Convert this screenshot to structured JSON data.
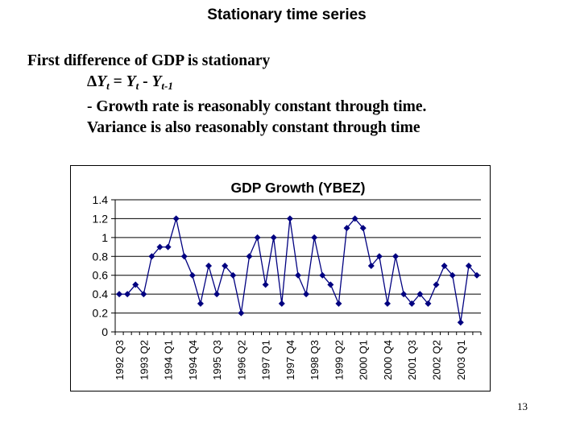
{
  "slide": {
    "title": "Stationary time series",
    "line1": "First difference of GDP is stationary",
    "formula": {
      "delta": "Δ",
      "lhs_var": "Y",
      "lhs_sub": "t",
      "equals": " = ",
      "rhs_var": "Y",
      "rhs_sub": "t",
      "minus": " - ",
      "lag_var": "Y",
      "lag_sub": "t-1"
    },
    "line3": "- Growth rate is reasonably constant through time.",
    "line4": "Variance is also reasonably constant through time",
    "page_number": "13"
  },
  "chart_data": {
    "type": "line",
    "title": "GDP Growth (YBEZ)",
    "xlabel": "",
    "ylabel": "",
    "ylim": [
      0,
      1.4
    ],
    "yticks": [
      "0",
      "0.2",
      "0.4",
      "0.6",
      "0.8",
      "1",
      "1.2",
      "1.4"
    ],
    "grid": true,
    "marker": "diamond",
    "color": "#000080",
    "x": [
      "1992 Q3",
      "1992 Q4",
      "1993 Q1",
      "1993 Q2",
      "1993 Q3",
      "1993 Q4",
      "1994 Q1",
      "1994 Q2",
      "1994 Q3",
      "1994 Q4",
      "1995 Q1",
      "1995 Q2",
      "1995 Q3",
      "1995 Q4",
      "1996 Q1",
      "1996 Q2",
      "1996 Q3",
      "1996 Q4",
      "1997 Q1",
      "1997 Q2",
      "1997 Q3",
      "1997 Q4",
      "1998 Q1",
      "1998 Q2",
      "1998 Q3",
      "1998 Q4",
      "1999 Q1",
      "1999 Q2",
      "1999 Q3",
      "1999 Q4",
      "2000 Q1",
      "2000 Q2",
      "2000 Q3",
      "2000 Q4",
      "2001 Q1",
      "2001 Q2",
      "2001 Q3",
      "2001 Q4",
      "2002 Q1",
      "2002 Q2",
      "2002 Q3",
      "2002 Q4",
      "2003 Q1",
      "2003 Q2",
      "2003 Q3"
    ],
    "xtick_labels": [
      "1992 Q3",
      "1993 Q2",
      "1994 Q1",
      "1994 Q4",
      "1995 Q3",
      "1996 Q2",
      "1997 Q1",
      "1997 Q4",
      "1998 Q3",
      "1999 Q2",
      "2000 Q1",
      "2000 Q4",
      "2001 Q3",
      "2002 Q2",
      "2003 Q1"
    ],
    "series": [
      {
        "values": [
          0.4,
          0.4,
          0.5,
          0.4,
          0.8,
          0.9,
          0.9,
          1.2,
          0.8,
          0.6,
          0.3,
          0.7,
          0.4,
          0.7,
          0.6,
          0.2,
          0.8,
          1.0,
          0.5,
          1.0,
          0.3,
          1.2,
          0.6,
          0.4,
          1.0,
          0.6,
          0.5,
          0.3,
          1.1,
          1.2,
          1.1,
          0.7,
          0.8,
          0.3,
          0.8,
          0.4,
          0.3,
          0.4,
          0.3,
          0.5,
          0.7,
          0.6,
          0.1,
          0.7,
          0.6
        ]
      }
    ]
  }
}
